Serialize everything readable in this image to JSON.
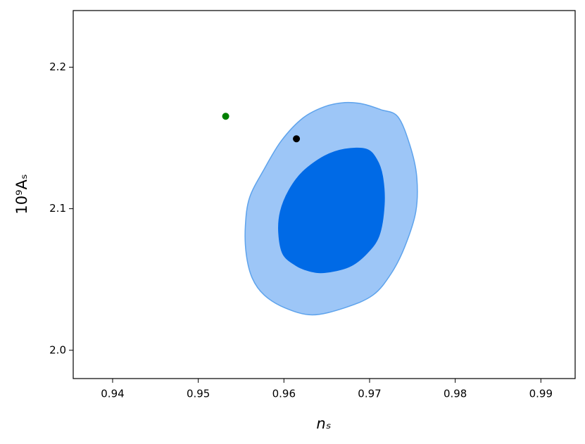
{
  "chart_data": {
    "type": "contour",
    "xlabel": "nₛ",
    "ylabel": "10⁹Aₛ",
    "xlim": [
      0.9354,
      0.994
    ],
    "ylim": [
      1.98,
      2.24
    ],
    "xticks": [
      0.94,
      0.95,
      0.96,
      0.97,
      0.98,
      0.99
    ],
    "yticks": [
      {
        "value": 2.0,
        "label": "2.0"
      },
      2.1,
      2.2
    ],
    "contours": [
      {
        "fill": "#9dc6f7",
        "stroke": "#5ea3ec",
        "x": [
          0.9633,
          0.9671,
          0.9704,
          0.9725,
          0.9741,
          0.9754,
          0.9755,
          0.9747,
          0.9733,
          0.9713,
          0.9692,
          0.9671,
          0.9647,
          0.9622,
          0.9597,
          0.9577,
          0.956,
          0.9555,
          0.9556,
          0.9563,
          0.9577,
          0.9601
        ],
        "y": [
          2.025,
          2.03,
          2.039,
          2.054,
          2.073,
          2.098,
          2.123,
          2.145,
          2.165,
          2.17,
          2.174,
          2.175,
          2.172,
          2.164,
          2.148,
          2.128,
          2.108,
          2.088,
          2.068,
          2.051,
          2.039,
          2.03
        ]
      },
      {
        "fill": "#006ae6",
        "stroke": "#006ae6",
        "x": [
          0.9648,
          0.9676,
          0.9696,
          0.9711,
          0.9717,
          0.9715,
          0.9708,
          0.9696,
          0.9671,
          0.9647,
          0.9622,
          0.9606,
          0.9596,
          0.9594,
          0.9599,
          0.9614,
          0.963
        ],
        "y": [
          2.055,
          2.059,
          2.068,
          2.081,
          2.103,
          2.123,
          2.135,
          2.142,
          2.142,
          2.137,
          2.126,
          2.113,
          2.098,
          2.083,
          2.068,
          2.06,
          2.056
        ]
      }
    ],
    "points": [
      {
        "color": "#008000",
        "x": 0.9532,
        "y": 2.1653
      },
      {
        "color": "#000000",
        "x": 0.96146,
        "y": 2.1494
      }
    ]
  }
}
